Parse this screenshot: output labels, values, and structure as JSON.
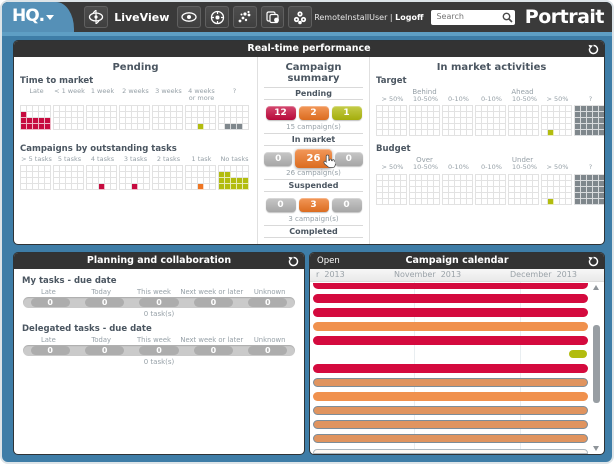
{
  "colors": {
    "red": "#c60b3f",
    "orange": "#ee7522",
    "green": "#b2bc0e",
    "gray": "#7f878c",
    "gray_btn": "#b4b4b4",
    "cal_red": "#d40a3e",
    "cal_orange": "#f0914e",
    "cal_bordered_fill": "#e0945f",
    "cal_green": "#b2bc0e"
  },
  "topbar": {
    "logo": "HQ.",
    "liveview_label": "LiveView",
    "icons": [
      "liveview-logo",
      "eye",
      "monitor",
      "analytics",
      "documents",
      "process"
    ],
    "user": "RemoteInstallUser",
    "divider": "|",
    "logoff": "Logoff",
    "search_placeholder": "Search",
    "brand": "Portrait"
  },
  "realtime": {
    "title": "Real-time performance",
    "pending": {
      "title": "Pending",
      "time_to_market": {
        "title": "Time to market",
        "columns": [
          "Late",
          "< 1 week",
          "1 week",
          "2 weeks",
          "3 weeks",
          "4 weeks or more",
          "?"
        ],
        "grid": {
          "groups": 7,
          "cols": 5,
          "rows": 4,
          "fills": [
            "0,1,0,red",
            "0,2,0,red",
            "0,2,1,red",
            "0,2,2,red",
            "0,2,3,red",
            "0,2,4,red",
            "0,3,0,red",
            "0,3,1,red",
            "0,3,2,red",
            "0,3,3,red",
            "0,3,4,red",
            "5,3,2,green",
            "6,3,1,gray",
            "6,3,2,gray",
            "6,3,3,gray"
          ]
        }
      },
      "outstanding_tasks": {
        "title": "Campaigns by outstanding tasks",
        "columns": [
          "> 5 tasks",
          "5 tasks",
          "4 tasks",
          "3 tasks",
          "2 tasks",
          "1 task",
          "No tasks"
        ],
        "grid": {
          "groups": 7,
          "cols": 5,
          "rows": 4,
          "fills": [
            "2,3,2,red",
            "3,3,2,red",
            "5,3,2,orange",
            "6,1,0,green",
            "6,1,1,green",
            "6,2,0,green",
            "6,2,1,green",
            "6,2,2,green",
            "6,2,3,green",
            "6,2,4,green",
            "6,3,0,green",
            "6,3,1,green",
            "6,3,2,green",
            "6,3,3,green",
            "6,3,4,green"
          ]
        }
      }
    },
    "summary": {
      "title": "Campaign summary",
      "groups": [
        {
          "label": "Pending",
          "buttons": [
            {
              "value": "12",
              "color": "red"
            },
            {
              "value": "2",
              "color": "orange"
            },
            {
              "value": "1",
              "color": "green"
            }
          ],
          "caption": "15 campaign(s)"
        },
        {
          "label": "In market",
          "buttons": [
            {
              "value": "0",
              "color": "gray_btn"
            },
            {
              "value": "26",
              "color": "orange",
              "hovered": true
            },
            {
              "value": "0",
              "color": "gray_btn"
            }
          ],
          "caption": "26 campaign(s)"
        },
        {
          "label": "Suspended",
          "buttons": [
            {
              "value": "0",
              "color": "gray_btn"
            },
            {
              "value": "3",
              "color": "orange"
            },
            {
              "value": "0",
              "color": "gray_btn"
            }
          ],
          "caption": "3 campaign(s)"
        },
        {
          "label": "Completed",
          "buttons": [
            {
              "value": "0",
              "color": "gray_btn"
            },
            {
              "value": "0",
              "color": "gray_btn"
            },
            {
              "value": "0",
              "color": "gray_btn"
            }
          ],
          "caption": "0 campaign(s)"
        }
      ]
    },
    "in_market": {
      "title": "In market activities",
      "target": {
        "title": "Target",
        "group_labels": [
          "Behind",
          "Ahead",
          ""
        ],
        "columns": [
          "> 50%",
          "10-50%",
          "0-10%",
          "0-10%",
          "10-50%",
          "> 50%",
          "?"
        ],
        "grid": {
          "groups": 7,
          "cols": 5,
          "rows": 5,
          "fills": [
            "5,4,1,green"
          ],
          "solid": [
            {
              "g": 6,
              "color": "gray"
            }
          ]
        }
      },
      "budget": {
        "title": "Budget",
        "group_labels": [
          "Over",
          "Under",
          ""
        ],
        "columns": [
          "> 50%",
          "10-50%",
          "0-10%",
          "0-10%",
          "10-50%",
          "> 50%",
          "?"
        ],
        "grid": {
          "groups": 7,
          "cols": 5,
          "rows": 5,
          "fills": [
            "5,4,1,green"
          ],
          "solid": [
            {
              "g": 6,
              "color": "gray"
            }
          ]
        }
      }
    }
  },
  "planning": {
    "title": "Planning and collaboration",
    "sections": [
      {
        "title": "My tasks - due date",
        "columns": [
          "Late",
          "Today",
          "This week",
          "Next week or later",
          "Unknown"
        ],
        "values": [
          "0",
          "0",
          "0",
          "0",
          "0"
        ],
        "caption": "0 task(s)"
      },
      {
        "title": "Delegated tasks - due date",
        "columns": [
          "Late",
          "Today",
          "This week",
          "Next week or later",
          "Unknown"
        ],
        "values": [
          "0",
          "0",
          "0",
          "0",
          "0"
        ],
        "caption": "0 task(s)"
      }
    ]
  },
  "calendar": {
    "title": "Campaign calendar",
    "open_label": "Open",
    "months": [
      "r  2013",
      "November  2013",
      "December  2013"
    ],
    "bars": [
      {
        "type": "cal_red",
        "cut": "top"
      },
      {
        "type": "cal_red"
      },
      {
        "type": "cal_red"
      },
      {
        "type": "cal_orange"
      },
      {
        "type": "cal_red"
      },
      {
        "type": "green_short"
      },
      {
        "type": "cal_red"
      },
      {
        "type": "bordered"
      },
      {
        "type": "cal_orange"
      },
      {
        "type": "bordered"
      },
      {
        "type": "bordered"
      },
      {
        "type": "bordered"
      },
      {
        "type": "outline",
        "cut": "bottom"
      }
    ]
  }
}
